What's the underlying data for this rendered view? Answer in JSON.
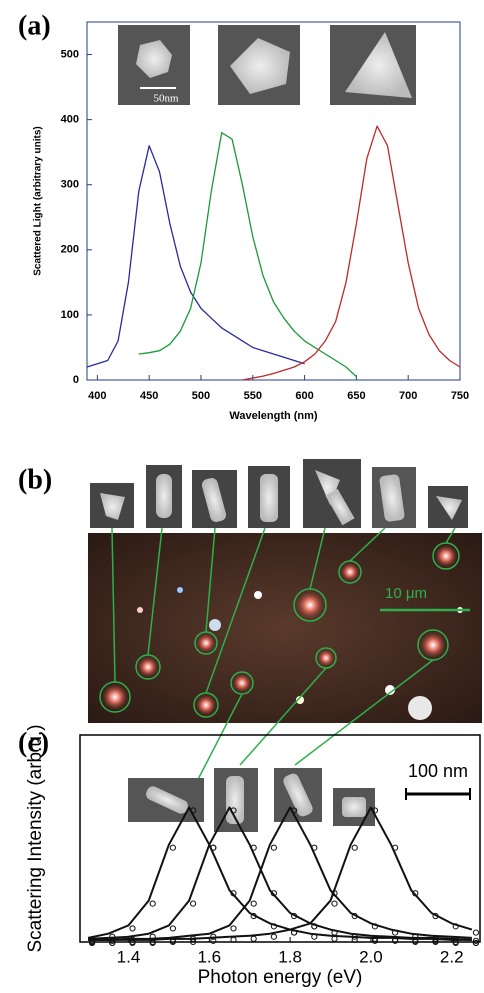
{
  "chart_data": [
    {
      "type": "line",
      "panel_label": "(a)",
      "annotations": [
        "50nm"
      ],
      "xlabel": "Wavelength (nm)",
      "ylabel": "Scattered Light (arbitrary units)",
      "x": [
        390,
        400,
        410,
        420,
        430,
        440,
        450,
        460,
        470,
        480,
        490,
        500,
        510,
        520,
        530,
        540,
        550,
        560,
        570,
        580,
        590,
        600,
        610,
        620,
        630,
        640,
        650,
        660,
        670,
        680,
        690,
        700,
        710,
        720,
        730,
        740,
        750
      ],
      "series": [
        {
          "color": "#2b2b9a",
          "values": [
            20,
            25,
            30,
            60,
            150,
            290,
            360,
            320,
            240,
            175,
            135,
            110,
            95,
            80,
            70,
            60,
            50,
            45,
            40,
            35,
            30,
            25,
            null,
            null,
            null,
            null,
            null,
            null,
            null,
            null,
            null,
            null,
            null,
            null,
            null,
            null,
            null
          ]
        },
        {
          "color": "#1a9a3a",
          "values": [
            null,
            null,
            null,
            null,
            null,
            40,
            42,
            45,
            55,
            75,
            110,
            180,
            290,
            380,
            370,
            300,
            220,
            160,
            120,
            95,
            75,
            60,
            50,
            40,
            30,
            20,
            5,
            null,
            null,
            null,
            null,
            null,
            null,
            null,
            null,
            null,
            null
          ]
        },
        {
          "color": "#c0282a",
          "values": [
            null,
            null,
            null,
            null,
            null,
            null,
            null,
            null,
            null,
            null,
            null,
            null,
            null,
            null,
            null,
            0,
            3,
            6,
            10,
            15,
            20,
            28,
            40,
            60,
            90,
            150,
            240,
            340,
            390,
            360,
            270,
            180,
            110,
            70,
            45,
            30,
            20
          ]
        }
      ],
      "xlim": [
        390,
        750
      ],
      "xticks": [
        400,
        450,
        500,
        550,
        600,
        650,
        700,
        750
      ],
      "ylim": [
        0,
        550
      ],
      "yticks": [
        0,
        100,
        200,
        300,
        400,
        500
      ]
    },
    {
      "type": "line",
      "panel_label": "(c)",
      "annotations": [
        "100 nm"
      ],
      "markers": true,
      "xlabel": "Photon energy (eV)",
      "ylabel": "Scattering Intensity (arb.u.)",
      "x": [
        1.3,
        1.35,
        1.4,
        1.45,
        1.5,
        1.55,
        1.6,
        1.65,
        1.7,
        1.75,
        1.8,
        1.85,
        1.9,
        1.95,
        2.0,
        2.05,
        2.1,
        2.15,
        2.2,
        2.25
      ],
      "series": [
        {
          "color": "#111111",
          "values": [
            0.02,
            0.04,
            0.08,
            0.2,
            0.47,
            0.65,
            0.47,
            0.25,
            0.14,
            0.09,
            0.06,
            0.04,
            0.03,
            0.025,
            0.02,
            0.02,
            0.015,
            0.015,
            0.01,
            0.01
          ]
        },
        {
          "color": "#111111",
          "values": [
            0.015,
            0.02,
            0.025,
            0.04,
            0.08,
            0.2,
            0.47,
            0.65,
            0.47,
            0.25,
            0.14,
            0.09,
            0.06,
            0.04,
            0.03,
            0.025,
            0.02,
            0.02,
            0.015,
            0.01
          ]
        },
        {
          "color": "#111111",
          "values": [
            0.01,
            0.01,
            0.015,
            0.015,
            0.02,
            0.03,
            0.04,
            0.08,
            0.2,
            0.47,
            0.65,
            0.47,
            0.25,
            0.14,
            0.09,
            0.06,
            0.04,
            0.03,
            0.025,
            0.02
          ]
        },
        {
          "color": "#111111",
          "values": [
            0.01,
            0.01,
            0.01,
            0.01,
            0.015,
            0.015,
            0.02,
            0.025,
            0.03,
            0.04,
            0.06,
            0.09,
            0.2,
            0.47,
            0.65,
            0.47,
            0.25,
            0.14,
            0.09,
            0.06
          ]
        }
      ],
      "xlim": [
        1.28,
        2.27
      ],
      "xticks": [
        1.4,
        1.6,
        1.8,
        {
          "value": 2,
          "label": "2.0"
        },
        2.2
      ],
      "ylim": [
        0,
        1
      ]
    }
  ],
  "image_panel": {
    "label": "(b)",
    "scale_bar": "10 μm"
  }
}
